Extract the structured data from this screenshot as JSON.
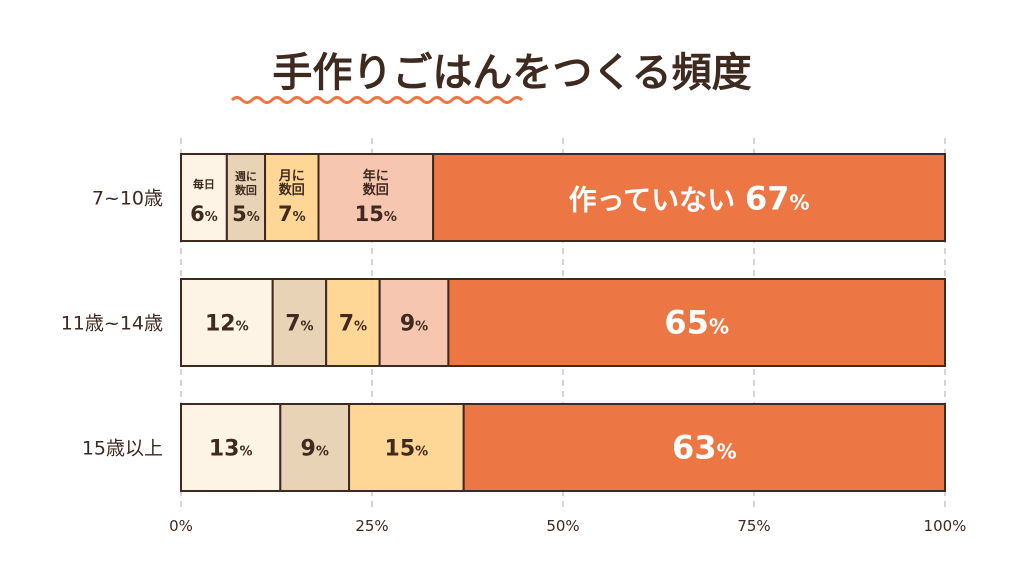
{
  "chart_data": {
    "type": "bar",
    "orientation": "horizontal",
    "stacked": true,
    "title": "手作りごはんをつくる頻度",
    "categories": [
      "7~10歳",
      "11歳~14歳",
      "15歳以上"
    ],
    "series": [
      {
        "name": "毎日",
        "values": [
          6,
          12,
          13
        ],
        "color": "#fdf4e6"
      },
      {
        "name": "週に数回",
        "values": [
          5,
          7,
          9
        ],
        "color": "#e9d3b6"
      },
      {
        "name": "月に数回",
        "values": [
          7,
          7,
          15
        ],
        "color": "#fed796"
      },
      {
        "name": "年に数回",
        "values": [
          15,
          9,
          0
        ],
        "color": "#f6c6b0"
      },
      {
        "name": "作っていない",
        "values": [
          67,
          65,
          63
        ],
        "color": "#ed7744"
      }
    ],
    "value_suffix": "%",
    "xlim": [
      0,
      100
    ],
    "xticks": [
      0,
      25,
      50,
      75,
      100
    ],
    "xtick_labels": [
      "0%",
      "25%",
      "50%",
      "75%",
      "100%"
    ],
    "grid": true,
    "legend": "inline-first-row"
  },
  "colors": {
    "title": "#3f2a20",
    "underline": "#ed7744",
    "outline": "#3f2a20",
    "grid": "#b9b9b9",
    "label_dark": "#3f2a20",
    "label_light": "#ffffff"
  }
}
